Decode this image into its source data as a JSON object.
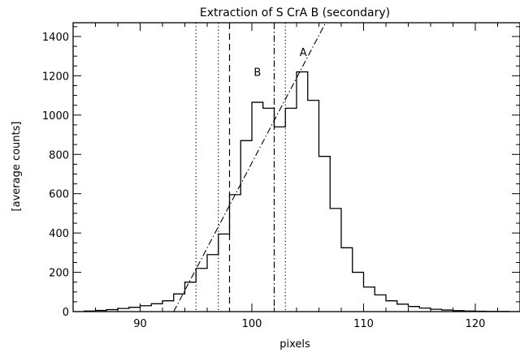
{
  "chart_data": {
    "type": "step-histogram",
    "title": "Extraction of S CrA B (secondary)",
    "xlabel": "pixels",
    "ylabel": "[average counts]",
    "xlim": [
      84,
      124
    ],
    "ylim": [
      0,
      1470
    ],
    "x_ticks": [
      90,
      100,
      110,
      120
    ],
    "y_ticks": [
      0,
      200,
      400,
      600,
      800,
      1000,
      1200,
      1400
    ],
    "grid": false,
    "histogram": {
      "bin_width": 1,
      "bins": [
        {
          "x": 84,
          "y": 0
        },
        {
          "x": 85,
          "y": 3
        },
        {
          "x": 86,
          "y": 6
        },
        {
          "x": 87,
          "y": 10
        },
        {
          "x": 88,
          "y": 16
        },
        {
          "x": 89,
          "y": 22
        },
        {
          "x": 90,
          "y": 30
        },
        {
          "x": 91,
          "y": 40
        },
        {
          "x": 92,
          "y": 55
        },
        {
          "x": 93,
          "y": 90
        },
        {
          "x": 94,
          "y": 150
        },
        {
          "x": 95,
          "y": 220
        },
        {
          "x": 96,
          "y": 290
        },
        {
          "x": 97,
          "y": 395
        },
        {
          "x": 98,
          "y": 595
        },
        {
          "x": 99,
          "y": 870
        },
        {
          "x": 100,
          "y": 1065
        },
        {
          "x": 101,
          "y": 1035
        },
        {
          "x": 102,
          "y": 940
        },
        {
          "x": 103,
          "y": 1035
        },
        {
          "x": 104,
          "y": 1220
        },
        {
          "x": 105,
          "y": 1075
        },
        {
          "x": 106,
          "y": 790
        },
        {
          "x": 107,
          "y": 525
        },
        {
          "x": 108,
          "y": 325
        },
        {
          "x": 109,
          "y": 200
        },
        {
          "x": 110,
          "y": 125
        },
        {
          "x": 111,
          "y": 85
        },
        {
          "x": 112,
          "y": 55
        },
        {
          "x": 113,
          "y": 38
        },
        {
          "x": 114,
          "y": 26
        },
        {
          "x": 115,
          "y": 18
        },
        {
          "x": 116,
          "y": 12
        },
        {
          "x": 117,
          "y": 8
        },
        {
          "x": 118,
          "y": 5
        },
        {
          "x": 119,
          "y": 3
        },
        {
          "x": 120,
          "y": 2
        },
        {
          "x": 121,
          "y": 1
        },
        {
          "x": 122,
          "y": 1
        },
        {
          "x": 123,
          "y": 0
        }
      ]
    },
    "vertical_lines": [
      {
        "x": 95,
        "style": "dotted"
      },
      {
        "x": 97,
        "style": "dotted"
      },
      {
        "x": 98,
        "style": "dashed"
      },
      {
        "x": 102,
        "style": "dash-dot"
      },
      {
        "x": 103,
        "style": "dotted"
      }
    ],
    "background_line": {
      "style": "dash-dot",
      "x": [
        93,
        106.6
      ],
      "y": [
        0,
        1470
      ]
    },
    "annotations": [
      {
        "text": "B",
        "x": 100.5,
        "y": 1200
      },
      {
        "text": "A",
        "x": 104.6,
        "y": 1300
      }
    ]
  }
}
